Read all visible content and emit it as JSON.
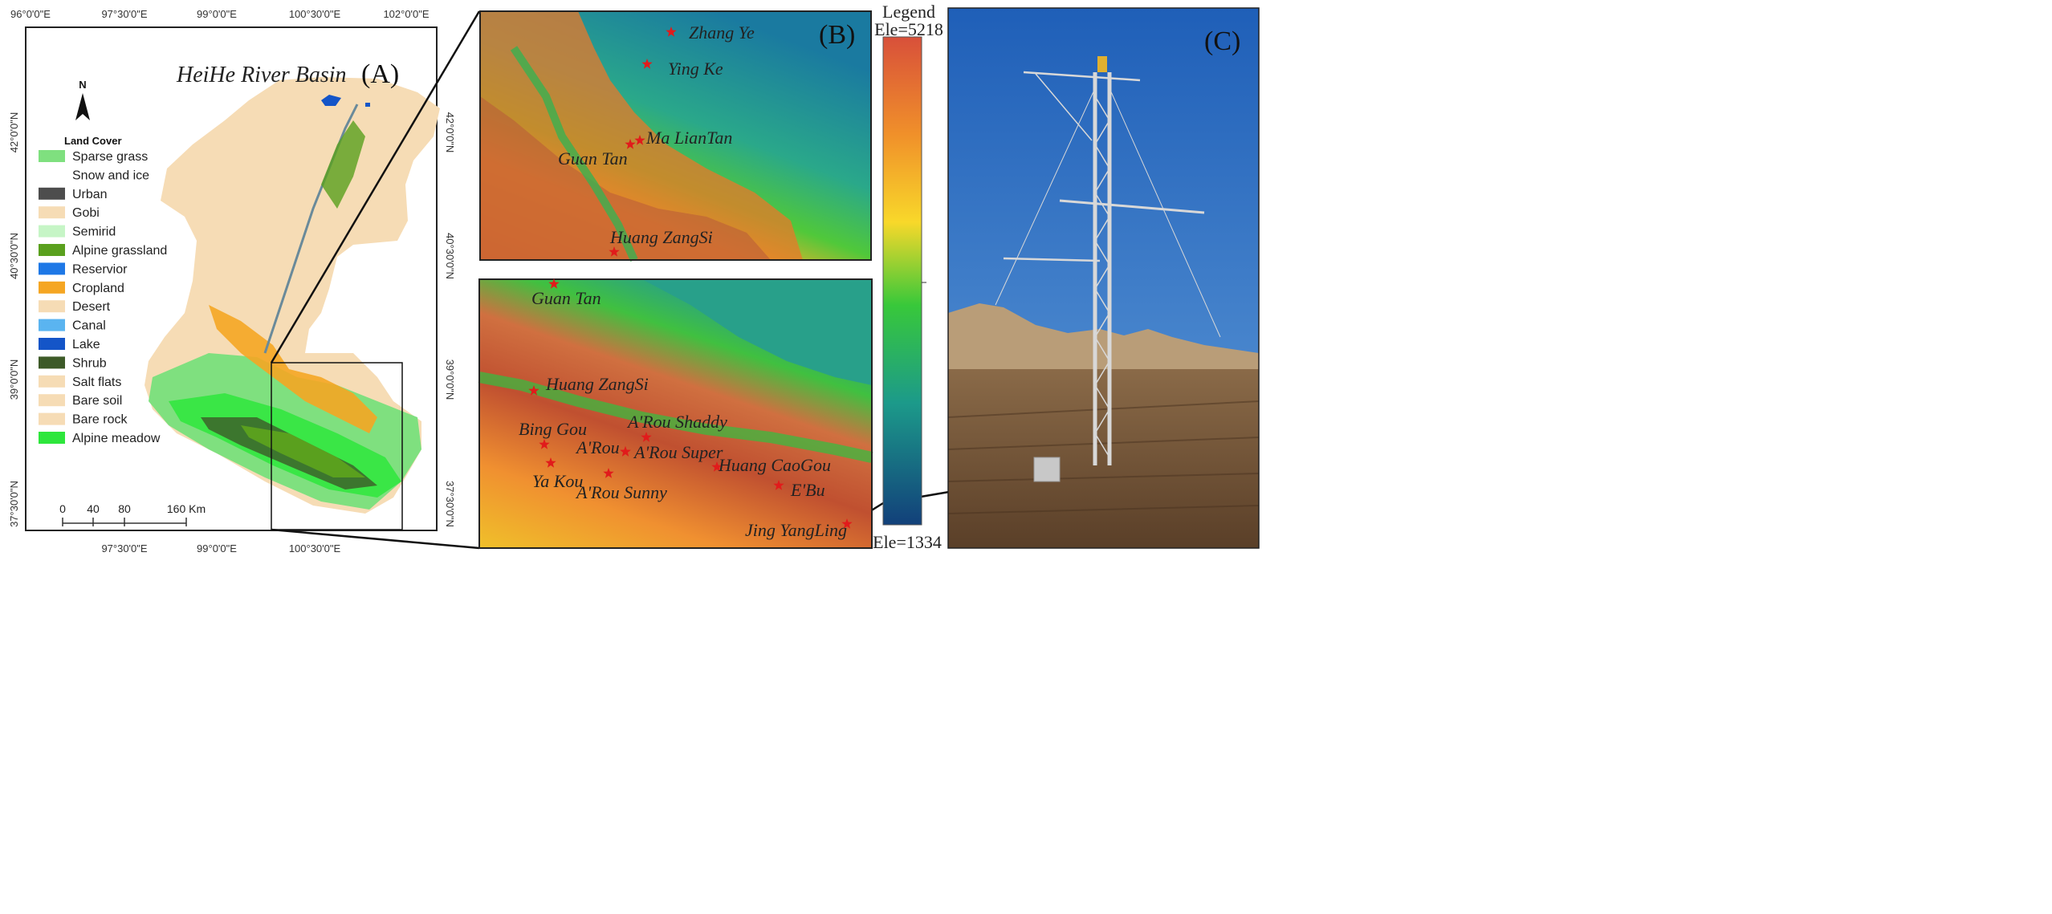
{
  "panel_a": {
    "panel_label": "(A)",
    "title": "HeiHe River Basin",
    "north_label": "N",
    "legend_title": "Land Cover",
    "legend_items": [
      {
        "label": "Sparse grass",
        "color": "#7fe07f"
      },
      {
        "label": "Snow and ice",
        "color": "#ffffff"
      },
      {
        "label": "Urban",
        "color": "#4d4d4d"
      },
      {
        "label": "Gobi",
        "color": "#f6dcb5"
      },
      {
        "label": "Semirid",
        "color": "#c6f5c6"
      },
      {
        "label": "Alpine grassland",
        "color": "#5aa01e"
      },
      {
        "label": "Reservior",
        "color": "#1e78e6"
      },
      {
        "label": "Cropland",
        "color": "#f5a623"
      },
      {
        "label": "Desert",
        "color": "#f6dcb5"
      },
      {
        "label": "Canal",
        "color": "#5ab4f0"
      },
      {
        "label": "Lake",
        "color": "#1455c8"
      },
      {
        "label": "Shrub",
        "color": "#3d5a28"
      },
      {
        "label": "Salt flats",
        "color": "#f6dcb5"
      },
      {
        "label": "Bare soil",
        "color": "#f6dcb5"
      },
      {
        "label": "Bare rock",
        "color": "#f6dcb5"
      },
      {
        "label": "Alpine meadow",
        "color": "#2ee63c"
      }
    ],
    "lon_ticks": [
      "96°0'0\"E",
      "97°30'0\"E",
      "99°0'0\"E",
      "100°30'0\"E",
      "102°0'0\"E"
    ],
    "lon_ticks_bottom": [
      "97°30'0\"E",
      "99°0'0\"E",
      "100°30'0\"E"
    ],
    "lat_ticks": [
      "42°0'0\"N",
      "40°30'0\"N",
      "39°0'0\"N",
      "37°30'0\"N"
    ],
    "scalebar_labels": [
      "0",
      "40",
      "80",
      "160 Km"
    ]
  },
  "panel_b": {
    "panel_label": "(B)",
    "top_sites": [
      "Zhang Ye",
      "Ying Ke",
      "Ma LianTan",
      "Guan Tan",
      "Huang ZangSi"
    ],
    "bottom_sites": [
      "Guan Tan",
      "Huang ZangSi",
      "Bing Gou",
      "A'Rou Shaddy",
      "A'Rou",
      "A'Rou Super",
      "Huang CaoGou",
      "Ya Kou",
      "A'Rou Sunny",
      "E'Bu",
      "Jing YangLing"
    ],
    "legend_title": "Legend",
    "ele_max": "Ele=5218",
    "ele_min": "Ele=1334",
    "marker_color": "#e11b1b"
  },
  "panel_c": {
    "panel_label": "(C)"
  }
}
